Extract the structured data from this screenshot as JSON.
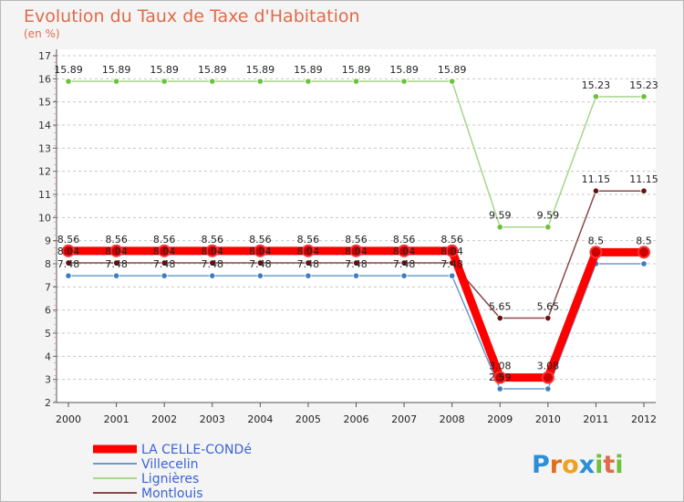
{
  "chart_data": {
    "type": "line",
    "title": "Evolution du Taux de Taxe d'Habitation",
    "subtitle": "(en %)",
    "xlabel": "",
    "ylabel": "",
    "ylim": [
      2,
      17
    ],
    "grid": "horizontal-dashed",
    "categories": [
      "2000",
      "2001",
      "2002",
      "2003",
      "2004",
      "2005",
      "2006",
      "2007",
      "2008",
      "2009",
      "2010",
      "2011",
      "2012"
    ],
    "yticks": [
      "2",
      "3",
      "4",
      "5",
      "6",
      "7",
      "8",
      "9",
      "10",
      "11",
      "12",
      "13",
      "14",
      "15",
      "16",
      "17"
    ],
    "series": [
      {
        "name": "LA CELLE-CONDé",
        "color": "#ff0000",
        "marker": "#cc0000",
        "values": [
          8.56,
          8.56,
          8.56,
          8.56,
          8.56,
          8.56,
          8.56,
          8.56,
          8.56,
          3.08,
          3.08,
          8.5,
          8.5
        ],
        "labels": [
          "8.56",
          "8.56",
          "8.56",
          "8.56",
          "8.56",
          "8.56",
          "8.56",
          "8.56",
          "8.56",
          "3.08",
          "3.08",
          "8.5",
          "8.5"
        ]
      },
      {
        "name": "Villecelin",
        "color": "#6c9bc8",
        "marker": "#3b7fc0",
        "values": [
          7.48,
          7.48,
          7.48,
          7.48,
          7.48,
          7.48,
          7.48,
          7.48,
          7.48,
          2.59,
          2.59,
          8.0,
          8.0
        ],
        "labels": [
          "7.48",
          "7.48",
          "7.48",
          "7.48",
          "7.48",
          "7.48",
          "7.48",
          "7.48",
          "7.48",
          "2.59",
          "",
          "",
          ""
        ]
      },
      {
        "name": "Lignières",
        "color": "#a6d68a",
        "marker": "#6cc23a",
        "values": [
          15.89,
          15.89,
          15.89,
          15.89,
          15.89,
          15.89,
          15.89,
          15.89,
          15.89,
          9.59,
          9.59,
          15.23,
          15.23
        ],
        "labels": [
          "15.89",
          "15.89",
          "15.89",
          "15.89",
          "15.89",
          "15.89",
          "15.89",
          "15.89",
          "15.89",
          "9.59",
          "9.59",
          "15.23",
          "15.23"
        ]
      },
      {
        "name": "Montlouis",
        "color": "#8b4a4a",
        "marker": "#6a1010",
        "values": [
          8.04,
          8.04,
          8.04,
          8.04,
          8.04,
          8.04,
          8.04,
          8.04,
          8.04,
          5.65,
          5.65,
          11.15,
          11.15
        ],
        "labels": [
          "8.04",
          "8.04",
          "8.04",
          "8.04",
          "8.04",
          "8.04",
          "8.04",
          "8.04",
          "8.04",
          "5.65",
          "5.65",
          "11.15",
          "11.15"
        ]
      }
    ],
    "legend_position": "bottom-left",
    "watermark": "Proxiti"
  }
}
